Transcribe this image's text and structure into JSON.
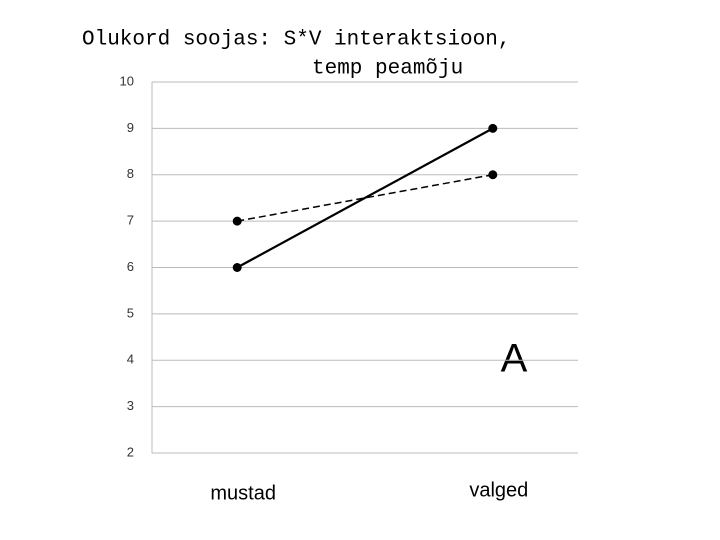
{
  "chart_data": {
    "type": "line",
    "title": [
      "Olukord soojas: S*V interaktsioon,",
      "temp peamõju"
    ],
    "categories": [
      "mustad",
      "valged"
    ],
    "series": [
      {
        "color": "#000000",
        "dash": "solid",
        "values": [
          6,
          9
        ]
      },
      {
        "color": "#000000",
        "dash": "dashed",
        "values": [
          7,
          8
        ]
      }
    ],
    "ylim": [
      2,
      10
    ],
    "yticks": [
      2,
      3,
      4,
      5,
      6,
      7,
      8,
      9,
      10
    ],
    "grid": true,
    "annotation": "A"
  }
}
